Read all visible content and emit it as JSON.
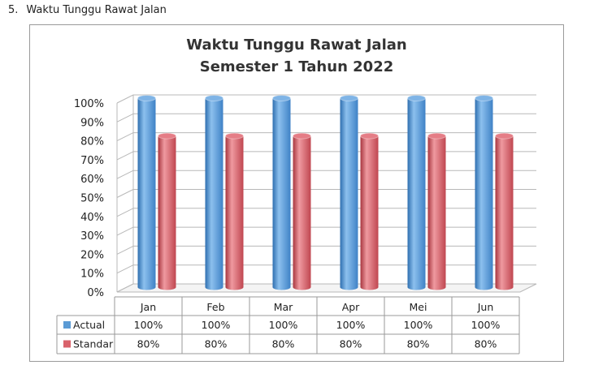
{
  "heading": {
    "number": "5.",
    "text": "Waktu Tunggu Rawat Jalan"
  },
  "colors": {
    "actual": "#5b9bd5",
    "standar": "#d9626b"
  },
  "chart_data": {
    "type": "bar",
    "title": "Waktu Tunggu Rawat Jalan",
    "subtitle": "Semester 1 Tahun 2022",
    "categories": [
      "Jan",
      "Feb",
      "Mar",
      "Apr",
      "Mei",
      "Jun"
    ],
    "y_ticks": [
      "0%",
      "10%",
      "20%",
      "30%",
      "40%",
      "50%",
      "60%",
      "70%",
      "80%",
      "90%",
      "100%"
    ],
    "ylim": [
      0,
      100
    ],
    "grid": true,
    "legend": "data-table",
    "series": [
      {
        "name": "Actual",
        "values": [
          100,
          100,
          100,
          100,
          100,
          100
        ],
        "labels": [
          "100%",
          "100%",
          "100%",
          "100%",
          "100%",
          "100%"
        ]
      },
      {
        "name": "Standar",
        "values": [
          80,
          80,
          80,
          80,
          80,
          80
        ],
        "labels": [
          "80%",
          "80%",
          "80%",
          "80%",
          "80%",
          "80%"
        ]
      }
    ]
  }
}
